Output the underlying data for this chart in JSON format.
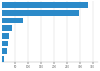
{
  "values": [
    330,
    295,
    80,
    38,
    28,
    22,
    18,
    7
  ],
  "bar_color": "#2b8ac9",
  "background_color": "#ffffff",
  "xlim": [
    0,
    370
  ],
  "bar_height": 0.75,
  "figsize": [
    1.0,
    0.71
  ],
  "dpi": 100,
  "grid_color": "#d0d0d0",
  "grid_positions": [
    50,
    100,
    150,
    200,
    250,
    300,
    350
  ]
}
